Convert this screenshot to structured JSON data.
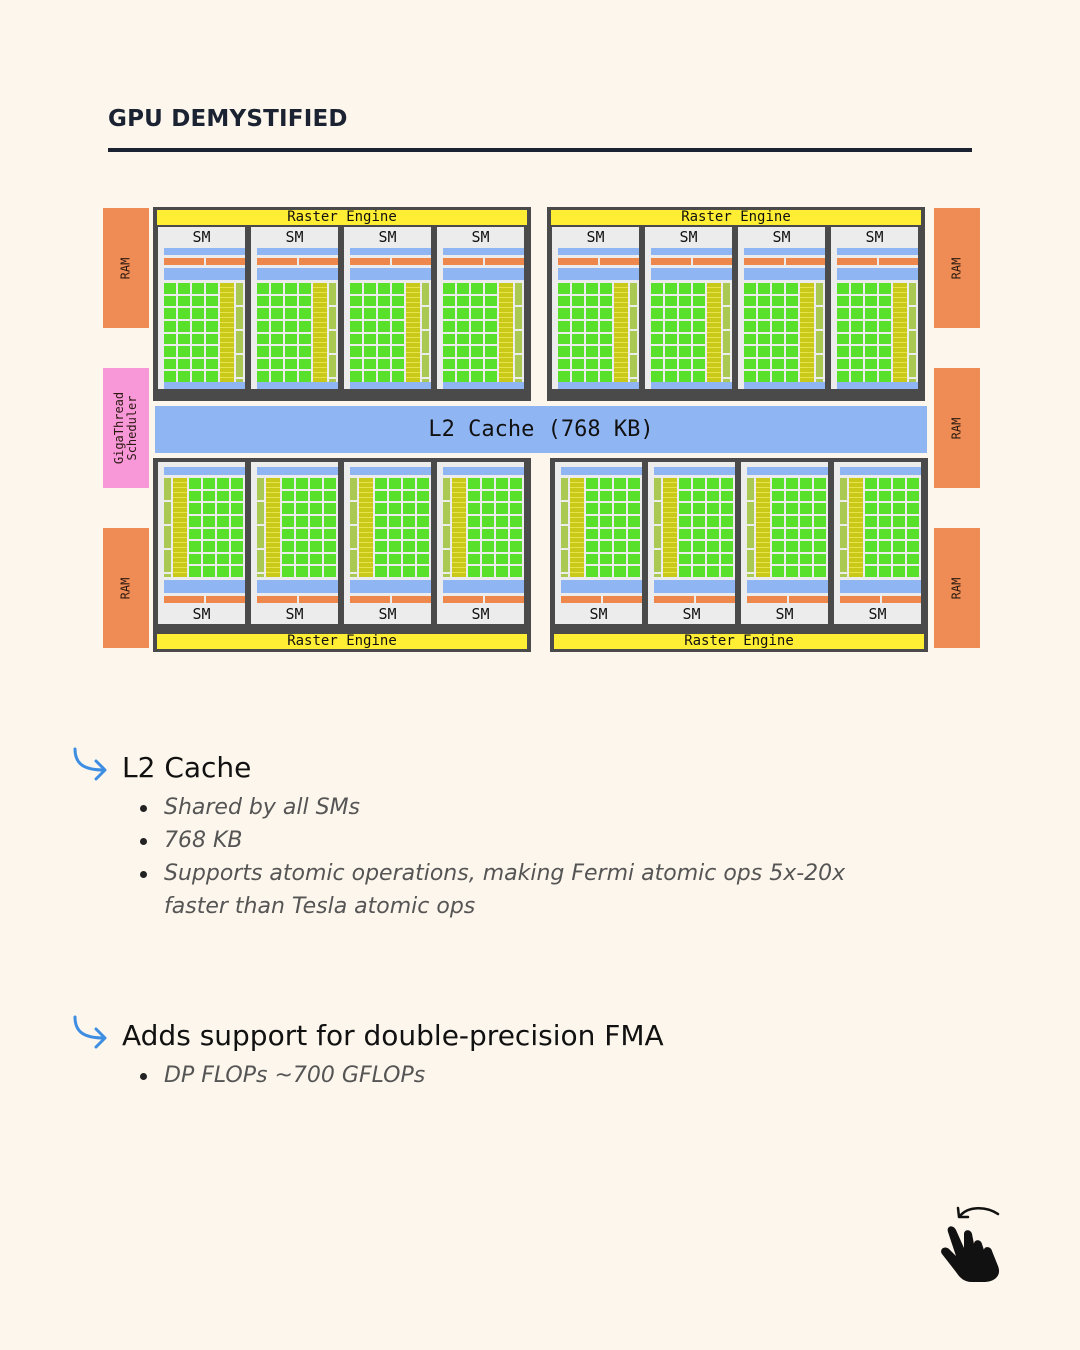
{
  "header": {
    "title": "GPU DEMYSTIFIED"
  },
  "diagram": {
    "ram_label": "RAM",
    "gigathread_label": "GigaThread\nScheduler",
    "l2_label": "L2 Cache (768 KB)",
    "raster_label": "Raster Engine",
    "sm_label": "SM",
    "colors": {
      "ram": "#ef8c55",
      "gigathread": "#f998d9",
      "raster": "#ffee33",
      "cache_blue": "#90b5f3",
      "core_green": "#59e02a",
      "ld_st_yellow": "#c9c91a",
      "gpc_frame": "#4a4a4a"
    }
  },
  "sections": [
    {
      "title": "L2 Cache",
      "bullets": [
        "Shared by all SMs",
        "768 KB",
        "Supports atomic operations, making Fermi atomic ops 5x-20x",
        "faster than Tesla atomic ops"
      ]
    },
    {
      "title": "Adds support for double-precision FMA",
      "bullets": [
        "DP FLOPs ~700 GFLOPs"
      ]
    }
  ],
  "icons": {
    "section_arrow": "curved-arrow-icon",
    "swipe": "swipe-hand-icon"
  }
}
